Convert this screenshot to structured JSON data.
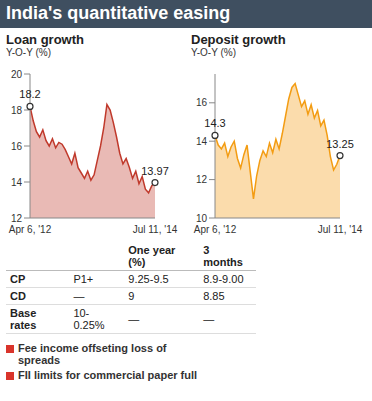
{
  "title": "India's quantitative easing",
  "chart_data": [
    {
      "type": "area",
      "title": "Loan growth",
      "subtitle": "Y-O-Y (%)",
      "categories": [
        "Apr 6, '12",
        null,
        null,
        null,
        null,
        null,
        null,
        null,
        null,
        null,
        null,
        null,
        null,
        null,
        null,
        null,
        null,
        null,
        null,
        null,
        null,
        null,
        null,
        null,
        null,
        null,
        null,
        null,
        null,
        null,
        null,
        null,
        null,
        null,
        null,
        null,
        null,
        null,
        null,
        "Jul 11, '14"
      ],
      "values": [
        18.2,
        17.4,
        16.8,
        16.5,
        16.9,
        16.3,
        16.0,
        16.4,
        15.9,
        16.2,
        16.1,
        15.8,
        15.4,
        15.0,
        15.6,
        14.8,
        14.5,
        14.2,
        14.6,
        14.1,
        14.4,
        15.2,
        16.0,
        17.0,
        18.3,
        18.0,
        17.3,
        16.5,
        15.6,
        15.0,
        15.3,
        14.8,
        14.2,
        14.6,
        13.9,
        14.3,
        13.6,
        13.4,
        13.8,
        13.97
      ],
      "color": "#c0392b",
      "ylim": [
        12,
        20
      ],
      "yticks": [
        12,
        14,
        16,
        18,
        20
      ],
      "grid": false,
      "annotations": [
        {
          "index": 0,
          "text": "18.2"
        },
        {
          "index": 39,
          "text": "13.97"
        }
      ]
    },
    {
      "type": "area",
      "title": "Deposit growth",
      "subtitle": "Y-O-Y (%)",
      "categories": [
        "Apr 6, '12",
        null,
        null,
        null,
        null,
        null,
        null,
        null,
        null,
        null,
        null,
        null,
        null,
        null,
        null,
        null,
        null,
        null,
        null,
        null,
        null,
        null,
        null,
        null,
        null,
        null,
        null,
        null,
        null,
        null,
        null,
        null,
        null,
        null,
        null,
        null,
        null,
        null,
        null,
        "Jul 11, '14"
      ],
      "values": [
        14.3,
        13.8,
        13.6,
        13.9,
        13.2,
        13.7,
        14.0,
        13.1,
        12.6,
        13.3,
        13.8,
        12.4,
        11.0,
        12.2,
        13.0,
        13.5,
        13.2,
        13.9,
        13.4,
        14.1,
        13.6,
        14.4,
        15.3,
        16.2,
        16.8,
        17.0,
        16.4,
        15.8,
        16.1,
        15.4,
        15.9,
        15.2,
        15.6,
        14.8,
        15.1,
        14.3,
        13.2,
        12.5,
        12.8,
        13.25
      ],
      "color": "#f39c12",
      "ylim": [
        10,
        17.5
      ],
      "yticks": [
        10,
        12,
        14,
        16
      ],
      "grid": false,
      "annotations": [
        {
          "index": 0,
          "text": "14.3"
        },
        {
          "index": 39,
          "text": "13.25"
        }
      ]
    }
  ],
  "table": {
    "columns": [
      "One year (%)",
      "3 months"
    ],
    "rows": [
      [
        "CP",
        "P1+",
        "9.25-9.5",
        "8.9-9.00"
      ],
      [
        "CD",
        "—",
        "9",
        "8.85"
      ],
      [
        "Base rates",
        "10-0.25%",
        "—",
        "—"
      ]
    ]
  },
  "notes": [
    "Fee income offseting loss of spreads",
    "FII limits for commercial paper full"
  ]
}
